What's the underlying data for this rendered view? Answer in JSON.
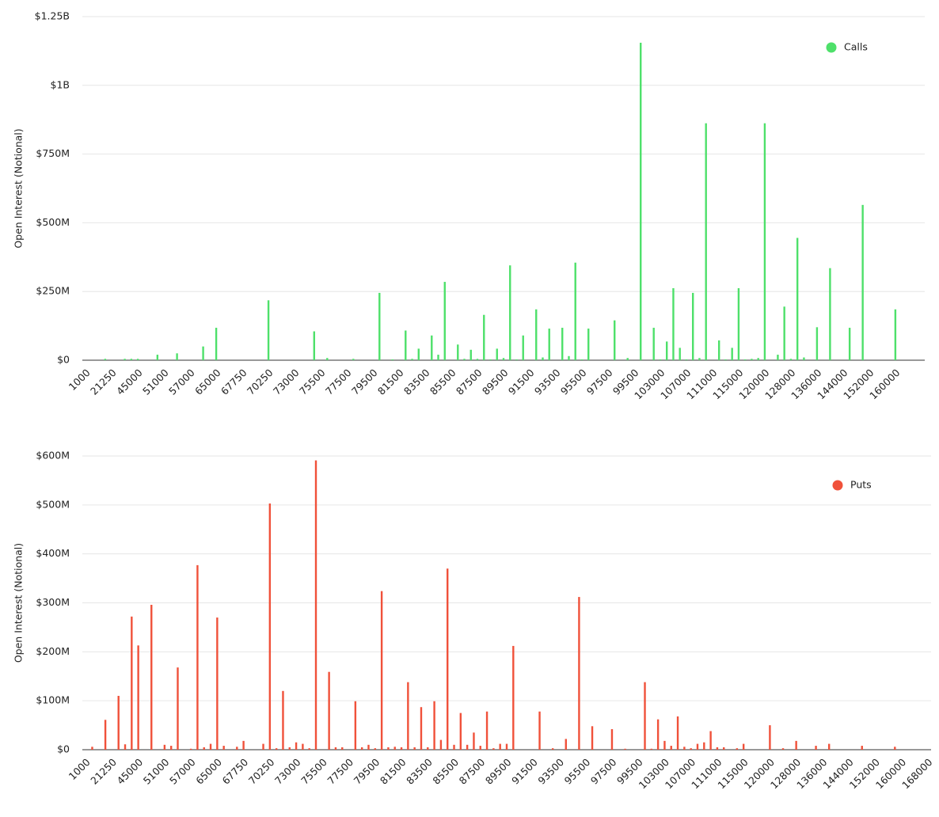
{
  "chart_data": [
    {
      "type": "bar",
      "y_label": "Open Interest (Notional)",
      "legend_position": "upper right",
      "grid": true,
      "series": [
        {
          "name": "Calls",
          "color": "#4ee06a",
          "values": [
            0,
            0,
            0,
            5,
            0,
            0,
            5,
            5,
            5,
            0,
            0,
            20,
            0,
            0,
            25,
            0,
            0,
            0,
            50,
            0,
            118,
            0,
            0,
            0,
            0,
            0,
            0,
            0,
            218,
            0,
            0,
            0,
            0,
            0,
            0,
            105,
            0,
            8,
            0,
            0,
            0,
            5,
            0,
            0,
            0,
            245,
            0,
            3,
            0,
            108,
            5,
            42,
            0,
            90,
            20,
            285,
            0,
            57,
            5,
            38,
            5,
            165,
            3,
            42,
            8,
            345,
            3,
            90,
            0,
            185,
            10,
            115,
            0,
            118,
            15,
            355,
            3,
            115,
            0,
            0,
            0,
            145,
            0,
            8,
            0,
            1155,
            0,
            118,
            3,
            68,
            262,
            45,
            3,
            245,
            8,
            862,
            0,
            72,
            3,
            45,
            262,
            3,
            5,
            8,
            862,
            0,
            20,
            195,
            5,
            445,
            10,
            0,
            120,
            0,
            335,
            0,
            0,
            118,
            0,
            565,
            0,
            0,
            0,
            0,
            185,
            0,
            0,
            0,
            0
          ]
        }
      ],
      "categories": [
        "1000",
        null,
        null,
        null,
        "21250",
        null,
        null,
        null,
        "45000",
        null,
        null,
        null,
        "51000",
        null,
        null,
        null,
        "57000",
        null,
        null,
        null,
        "65000",
        null,
        null,
        null,
        "67750",
        null,
        null,
        null,
        "70250",
        null,
        null,
        null,
        "73000",
        null,
        null,
        null,
        "75500",
        null,
        null,
        null,
        "77500",
        null,
        null,
        null,
        "79500",
        null,
        null,
        null,
        "81500",
        null,
        null,
        null,
        "83500",
        null,
        null,
        null,
        "85500",
        null,
        null,
        null,
        "87500",
        null,
        null,
        null,
        "89500",
        null,
        null,
        null,
        "91500",
        null,
        null,
        null,
        "93500",
        null,
        null,
        null,
        "95500",
        null,
        null,
        null,
        "97500",
        null,
        null,
        null,
        "99500",
        null,
        null,
        null,
        "103000",
        null,
        null,
        null,
        "107000",
        null,
        null,
        null,
        "111000",
        null,
        null,
        null,
        "115000",
        null,
        null,
        null,
        "120000",
        null,
        null,
        null,
        "128000",
        null,
        null,
        null,
        "136000",
        null,
        null,
        null,
        "144000",
        null,
        null,
        null,
        "152000",
        null,
        null,
        null,
        "160000",
        null,
        null,
        null,
        null
      ],
      "ylim": [
        0,
        1250
      ],
      "yticks": [
        {
          "value": 0,
          "label": "$0"
        },
        {
          "value": 250,
          "label": "$250M"
        },
        {
          "value": 500,
          "label": "$500M"
        },
        {
          "value": 750,
          "label": "$750M"
        },
        {
          "value": 1000,
          "label": "$1B"
        },
        {
          "value": 1250,
          "label": "$1.25B"
        }
      ]
    },
    {
      "type": "bar",
      "y_label": "Open Interest (Notional)",
      "legend_position": "upper right",
      "grid": true,
      "series": [
        {
          "name": "Puts",
          "color": "#f0513a",
          "values": [
            0,
            6,
            0,
            61,
            0,
            110,
            11,
            272,
            213,
            0,
            296,
            0,
            10,
            8,
            168,
            0,
            2,
            377,
            5,
            12,
            270,
            8,
            0,
            6,
            18,
            0,
            0,
            12,
            503,
            3,
            120,
            5,
            15,
            12,
            3,
            591,
            0,
            159,
            5,
            5,
            0,
            99,
            5,
            10,
            3,
            324,
            5,
            6,
            5,
            138,
            5,
            87,
            5,
            99,
            20,
            370,
            10,
            75,
            10,
            35,
            8,
            78,
            3,
            12,
            12,
            212,
            0,
            0,
            0,
            78,
            0,
            3,
            0,
            22,
            0,
            312,
            0,
            48,
            0,
            0,
            42,
            0,
            2,
            0,
            0,
            138,
            2,
            62,
            18,
            8,
            68,
            6,
            3,
            12,
            15,
            38,
            5,
            5,
            0,
            3,
            12,
            0,
            0,
            0,
            50,
            0,
            3,
            0,
            18,
            0,
            0,
            8,
            0,
            12,
            0,
            0,
            0,
            0,
            8,
            0,
            0,
            0,
            0,
            6,
            0,
            0,
            0,
            0,
            0
          ]
        }
      ],
      "categories": [
        "1000",
        null,
        null,
        null,
        "21250",
        null,
        null,
        null,
        "45000",
        null,
        null,
        null,
        "51000",
        null,
        null,
        null,
        "57000",
        null,
        null,
        null,
        "65000",
        null,
        null,
        null,
        "67750",
        null,
        null,
        null,
        "70250",
        null,
        null,
        null,
        "73000",
        null,
        null,
        null,
        "75500",
        null,
        null,
        null,
        "77500",
        null,
        null,
        null,
        "79500",
        null,
        null,
        null,
        "81500",
        null,
        null,
        null,
        "83500",
        null,
        null,
        null,
        "85500",
        null,
        null,
        null,
        "87500",
        null,
        null,
        null,
        "89500",
        null,
        null,
        null,
        "91500",
        null,
        null,
        null,
        "93500",
        null,
        null,
        null,
        "95500",
        null,
        null,
        null,
        "97500",
        null,
        null,
        null,
        "99500",
        null,
        null,
        null,
        "103000",
        null,
        null,
        null,
        "107000",
        null,
        null,
        null,
        "111000",
        null,
        null,
        null,
        "115000",
        null,
        null,
        null,
        "120000",
        null,
        null,
        null,
        "128000",
        null,
        null,
        null,
        "136000",
        null,
        null,
        null,
        "144000",
        null,
        null,
        null,
        "152000",
        null,
        null,
        null,
        "160000",
        null,
        null,
        null,
        "168000"
      ],
      "ylim": [
        0,
        600
      ],
      "yticks": [
        {
          "value": 0,
          "label": "$0"
        },
        {
          "value": 100,
          "label": "$100M"
        },
        {
          "value": 200,
          "label": "$200M"
        },
        {
          "value": 300,
          "label": "$300M"
        },
        {
          "value": 400,
          "label": "$400M"
        },
        {
          "value": 500,
          "label": "$500M"
        },
        {
          "value": 600,
          "label": "$600M"
        }
      ]
    }
  ]
}
